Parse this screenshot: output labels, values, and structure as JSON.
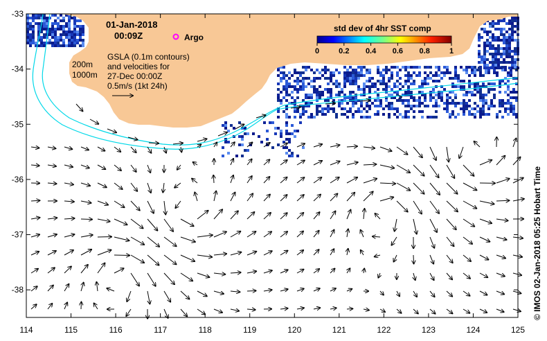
{
  "map": {
    "date_line": "01-Jan-2018",
    "time_line": "00:09Z",
    "argo_label": "Argo",
    "contour_labels": [
      "200m",
      "1000m"
    ],
    "gsla_lines": [
      "GSLA (0.1m contours)",
      "and velocities for",
      "27-Dec 00:00Z",
      "0.5m/s (1kt 24h)"
    ],
    "credit": "© IMOS 02-Jan-2018 05:25 Hobart Time",
    "colorbar": {
      "title": "std dev of 4hr SST comp",
      "ticks": [
        "0",
        "0.2",
        "0.4",
        "0.6",
        "0.8",
        "1"
      ]
    },
    "x_ticks": [
      "114",
      "115",
      "116",
      "117",
      "118",
      "119",
      "120",
      "121",
      "122",
      "123",
      "124",
      "125"
    ],
    "y_ticks": [
      "-33",
      "-34",
      "-35",
      "-36",
      "-37",
      "-38"
    ],
    "colors": {
      "land": "#f8c896",
      "sst_dark": "#1a2c9c",
      "sst_mid": "#3a6ae0",
      "contour": "#00d8e8",
      "argo": "#ff00ff"
    },
    "extent": {
      "lon": [
        114,
        125
      ],
      "lat": [
        -38.5,
        -33
      ]
    }
  }
}
